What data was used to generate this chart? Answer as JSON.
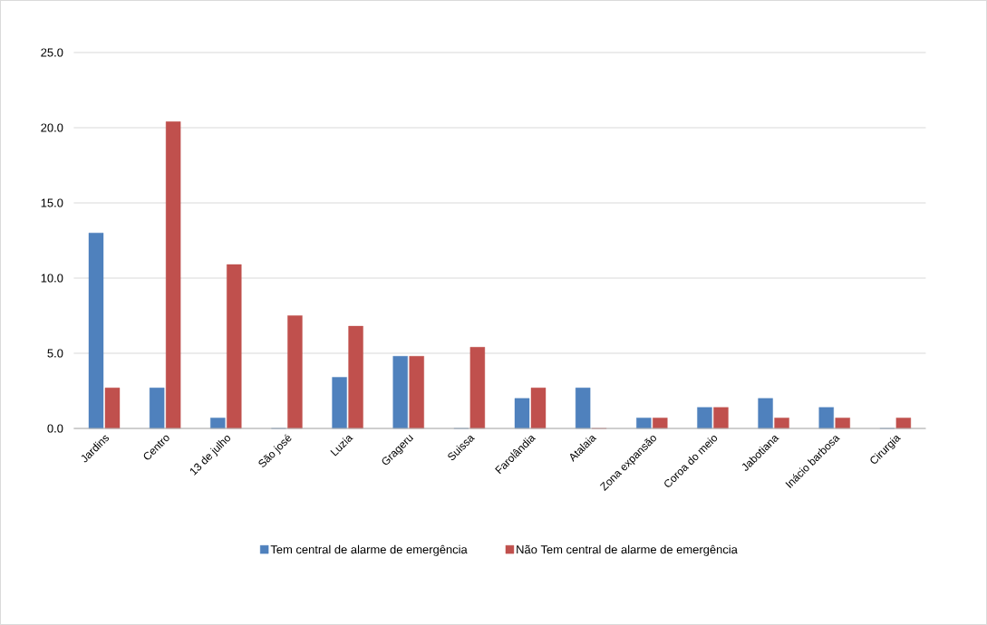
{
  "chart_data": {
    "type": "bar",
    "categories": [
      "Jardins",
      "Centro",
      "13 de julho",
      "São josé",
      "Luzia",
      "Grageru",
      "Suissa",
      "Farolândia",
      "Atalaia",
      "Zona expansão",
      "Coroa do meio",
      "Jabotiana",
      "Inácio barbosa",
      "Cirurgia"
    ],
    "series": [
      {
        "name": "Tem central de alarme de emergência",
        "color": "#4f81bd",
        "values": [
          13.0,
          2.7,
          0.7,
          0,
          3.4,
          4.8,
          0,
          2.0,
          2.7,
          0.7,
          1.4,
          2.0,
          1.4,
          0
        ]
      },
      {
        "name": "Não Tem central de alarme de emergência",
        "color": "#c0504d",
        "values": [
          2.7,
          20.4,
          10.9,
          7.5,
          6.8,
          4.8,
          5.4,
          2.7,
          0,
          0.7,
          1.4,
          0.7,
          0.7,
          0.7
        ]
      }
    ],
    "ylim": [
      0,
      25
    ],
    "yticks": [
      {
        "value": 0,
        "label": "0.0"
      },
      {
        "value": 5,
        "label": "5.0"
      },
      {
        "value": 10,
        "label": "10.0"
      },
      {
        "value": 15,
        "label": "15.0"
      },
      {
        "value": 20,
        "label": "20.0"
      },
      {
        "value": 25,
        "label": "25.0"
      }
    ],
    "grid": "y",
    "legend": "bottom"
  }
}
